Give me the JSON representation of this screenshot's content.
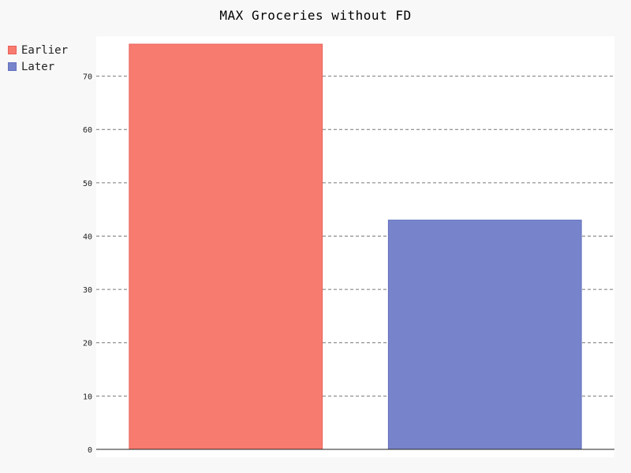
{
  "chart_data": {
    "type": "bar",
    "title": "MAX Groceries without FD",
    "xlabel": "",
    "ylabel": "",
    "ylim": [
      0,
      76
    ],
    "yticks": [
      "0",
      "10",
      "20",
      "30",
      "40",
      "50",
      "60",
      "70"
    ],
    "grid": true,
    "legend_position": "left",
    "series": [
      {
        "name": "Earlier",
        "value": 76,
        "color": "#f87b70",
        "stroke": "#e8605a"
      },
      {
        "name": "Later",
        "value": 43,
        "color": "#7784cb",
        "stroke": "#6270c0"
      }
    ]
  }
}
